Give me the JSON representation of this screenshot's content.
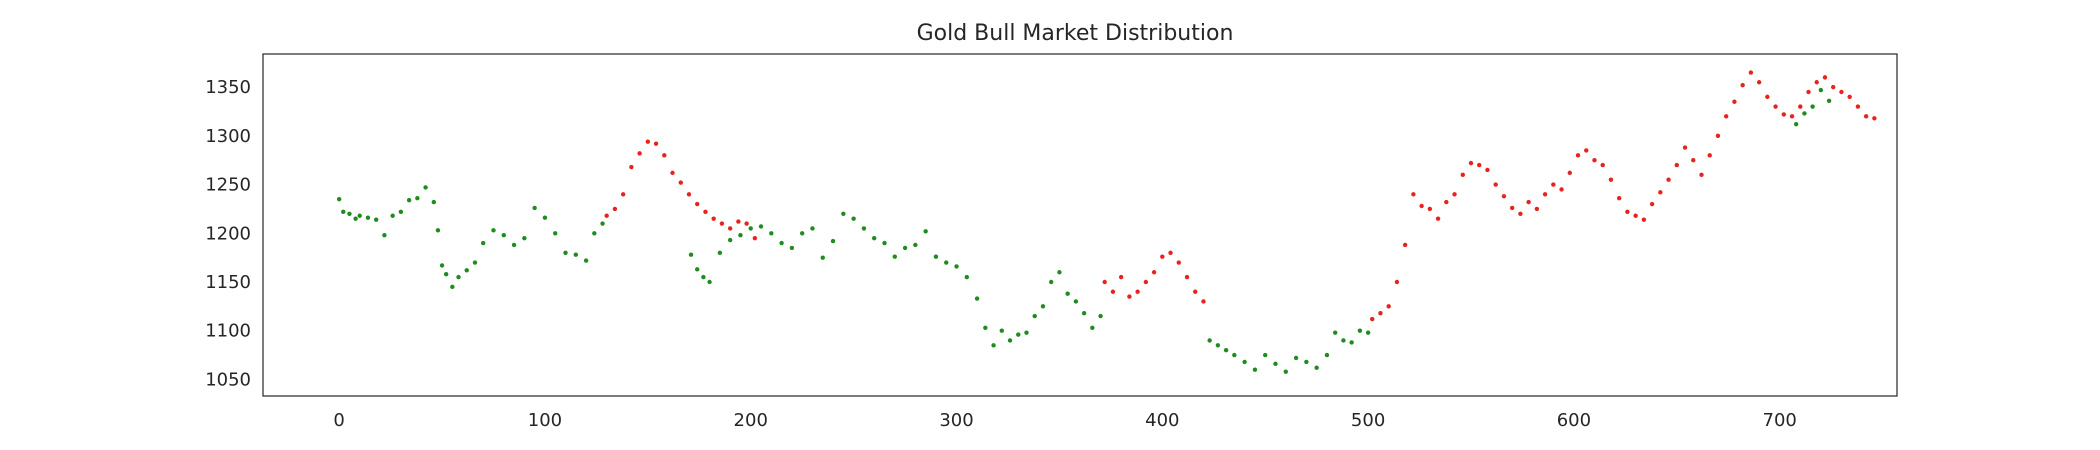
{
  "chart_data": {
    "type": "scatter",
    "title": "Gold Bull Market Distribution",
    "xlabel": "",
    "ylabel": "",
    "xlim": [
      -37,
      757
    ],
    "ylim": [
      1033,
      1384
    ],
    "xticks": [
      0,
      100,
      200,
      300,
      400,
      500,
      600,
      700
    ],
    "yticks": [
      1050,
      1100,
      1150,
      1200,
      1250,
      1300,
      1350
    ],
    "grid": false,
    "legend": "none",
    "colors": {
      "bull": "#e8221c",
      "bear": "#1e8c1e",
      "axis": "#262626"
    },
    "series": [
      {
        "color_key": "bear",
        "points": [
          [
            0,
            1235
          ],
          [
            2,
            1222
          ],
          [
            5,
            1220
          ],
          [
            8,
            1215
          ],
          [
            10,
            1218
          ],
          [
            14,
            1216
          ],
          [
            18,
            1214
          ],
          [
            22,
            1198
          ],
          [
            26,
            1218
          ],
          [
            30,
            1222
          ],
          [
            34,
            1234
          ],
          [
            38,
            1236
          ],
          [
            42,
            1247
          ],
          [
            46,
            1232
          ],
          [
            48,
            1203
          ],
          [
            50,
            1167
          ],
          [
            52,
            1158
          ],
          [
            55,
            1145
          ],
          [
            58,
            1155
          ],
          [
            62,
            1162
          ],
          [
            66,
            1170
          ],
          [
            70,
            1190
          ],
          [
            75,
            1203
          ],
          [
            80,
            1198
          ],
          [
            85,
            1188
          ],
          [
            90,
            1195
          ],
          [
            95,
            1226
          ],
          [
            100,
            1216
          ],
          [
            105,
            1200
          ],
          [
            110,
            1180
          ],
          [
            115,
            1178
          ],
          [
            120,
            1172
          ],
          [
            124,
            1200
          ],
          [
            128,
            1210
          ],
          [
            171,
            1178
          ],
          [
            174,
            1163
          ],
          [
            177,
            1155
          ],
          [
            180,
            1150
          ],
          [
            185,
            1180
          ],
          [
            190,
            1193
          ],
          [
            195,
            1198
          ],
          [
            200,
            1205
          ],
          [
            205,
            1207
          ],
          [
            210,
            1200
          ],
          [
            215,
            1190
          ],
          [
            220,
            1185
          ],
          [
            225,
            1200
          ],
          [
            230,
            1205
          ],
          [
            235,
            1175
          ],
          [
            240,
            1192
          ],
          [
            245,
            1220
          ],
          [
            250,
            1215
          ],
          [
            255,
            1205
          ],
          [
            260,
            1195
          ],
          [
            265,
            1190
          ],
          [
            270,
            1176
          ],
          [
            275,
            1185
          ],
          [
            280,
            1188
          ],
          [
            285,
            1202
          ],
          [
            290,
            1176
          ],
          [
            295,
            1170
          ],
          [
            300,
            1166
          ],
          [
            305,
            1155
          ],
          [
            310,
            1133
          ],
          [
            314,
            1103
          ],
          [
            318,
            1085
          ],
          [
            322,
            1100
          ],
          [
            326,
            1090
          ],
          [
            330,
            1096
          ],
          [
            334,
            1098
          ],
          [
            338,
            1115
          ],
          [
            342,
            1125
          ],
          [
            346,
            1150
          ],
          [
            350,
            1160
          ],
          [
            354,
            1138
          ],
          [
            358,
            1130
          ],
          [
            362,
            1118
          ],
          [
            366,
            1103
          ],
          [
            370,
            1115
          ],
          [
            423,
            1090
          ],
          [
            427,
            1085
          ],
          [
            431,
            1080
          ],
          [
            435,
            1075
          ],
          [
            440,
            1068
          ],
          [
            445,
            1060
          ],
          [
            450,
            1075
          ],
          [
            455,
            1066
          ],
          [
            460,
            1058
          ],
          [
            465,
            1072
          ],
          [
            470,
            1068
          ],
          [
            475,
            1062
          ],
          [
            480,
            1075
          ],
          [
            484,
            1098
          ],
          [
            488,
            1090
          ],
          [
            492,
            1088
          ],
          [
            496,
            1100
          ],
          [
            500,
            1098
          ],
          [
            708,
            1312
          ],
          [
            712,
            1323
          ],
          [
            716,
            1330
          ],
          [
            720,
            1347
          ],
          [
            724,
            1336
          ]
        ]
      },
      {
        "color_key": "bull",
        "points": [
          [
            130,
            1218
          ],
          [
            134,
            1225
          ],
          [
            138,
            1240
          ],
          [
            142,
            1268
          ],
          [
            146,
            1282
          ],
          [
            150,
            1294
          ],
          [
            154,
            1292
          ],
          [
            158,
            1280
          ],
          [
            162,
            1262
          ],
          [
            166,
            1252
          ],
          [
            170,
            1240
          ],
          [
            174,
            1230
          ],
          [
            178,
            1222
          ],
          [
            182,
            1215
          ],
          [
            186,
            1210
          ],
          [
            190,
            1205
          ],
          [
            194,
            1212
          ],
          [
            198,
            1210
          ],
          [
            202,
            1195
          ],
          [
            372,
            1150
          ],
          [
            376,
            1140
          ],
          [
            380,
            1155
          ],
          [
            384,
            1135
          ],
          [
            388,
            1140
          ],
          [
            392,
            1150
          ],
          [
            396,
            1160
          ],
          [
            400,
            1176
          ],
          [
            404,
            1180
          ],
          [
            408,
            1170
          ],
          [
            412,
            1155
          ],
          [
            416,
            1140
          ],
          [
            420,
            1130
          ],
          [
            502,
            1112
          ],
          [
            506,
            1118
          ],
          [
            510,
            1125
          ],
          [
            514,
            1150
          ],
          [
            518,
            1188
          ],
          [
            522,
            1240
          ],
          [
            526,
            1228
          ],
          [
            530,
            1225
          ],
          [
            534,
            1215
          ],
          [
            538,
            1232
          ],
          [
            542,
            1240
          ],
          [
            546,
            1260
          ],
          [
            550,
            1272
          ],
          [
            554,
            1270
          ],
          [
            558,
            1265
          ],
          [
            562,
            1250
          ],
          [
            566,
            1238
          ],
          [
            570,
            1226
          ],
          [
            574,
            1220
          ],
          [
            578,
            1232
          ],
          [
            582,
            1225
          ],
          [
            586,
            1240
          ],
          [
            590,
            1250
          ],
          [
            594,
            1245
          ],
          [
            598,
            1262
          ],
          [
            602,
            1280
          ],
          [
            606,
            1285
          ],
          [
            610,
            1275
          ],
          [
            614,
            1270
          ],
          [
            618,
            1255
          ],
          [
            622,
            1236
          ],
          [
            626,
            1222
          ],
          [
            630,
            1218
          ],
          [
            634,
            1214
          ],
          [
            638,
            1230
          ],
          [
            642,
            1242
          ],
          [
            646,
            1255
          ],
          [
            650,
            1270
          ],
          [
            654,
            1288
          ],
          [
            658,
            1275
          ],
          [
            662,
            1260
          ],
          [
            666,
            1280
          ],
          [
            670,
            1300
          ],
          [
            674,
            1320
          ],
          [
            678,
            1335
          ],
          [
            682,
            1352
          ],
          [
            686,
            1365
          ],
          [
            690,
            1355
          ],
          [
            694,
            1340
          ],
          [
            698,
            1330
          ],
          [
            702,
            1322
          ],
          [
            706,
            1320
          ],
          [
            710,
            1330
          ],
          [
            714,
            1345
          ],
          [
            718,
            1355
          ],
          [
            722,
            1360
          ],
          [
            726,
            1350
          ],
          [
            730,
            1345
          ],
          [
            734,
            1340
          ],
          [
            738,
            1330
          ],
          [
            742,
            1320
          ],
          [
            746,
            1318
          ]
        ]
      }
    ]
  }
}
